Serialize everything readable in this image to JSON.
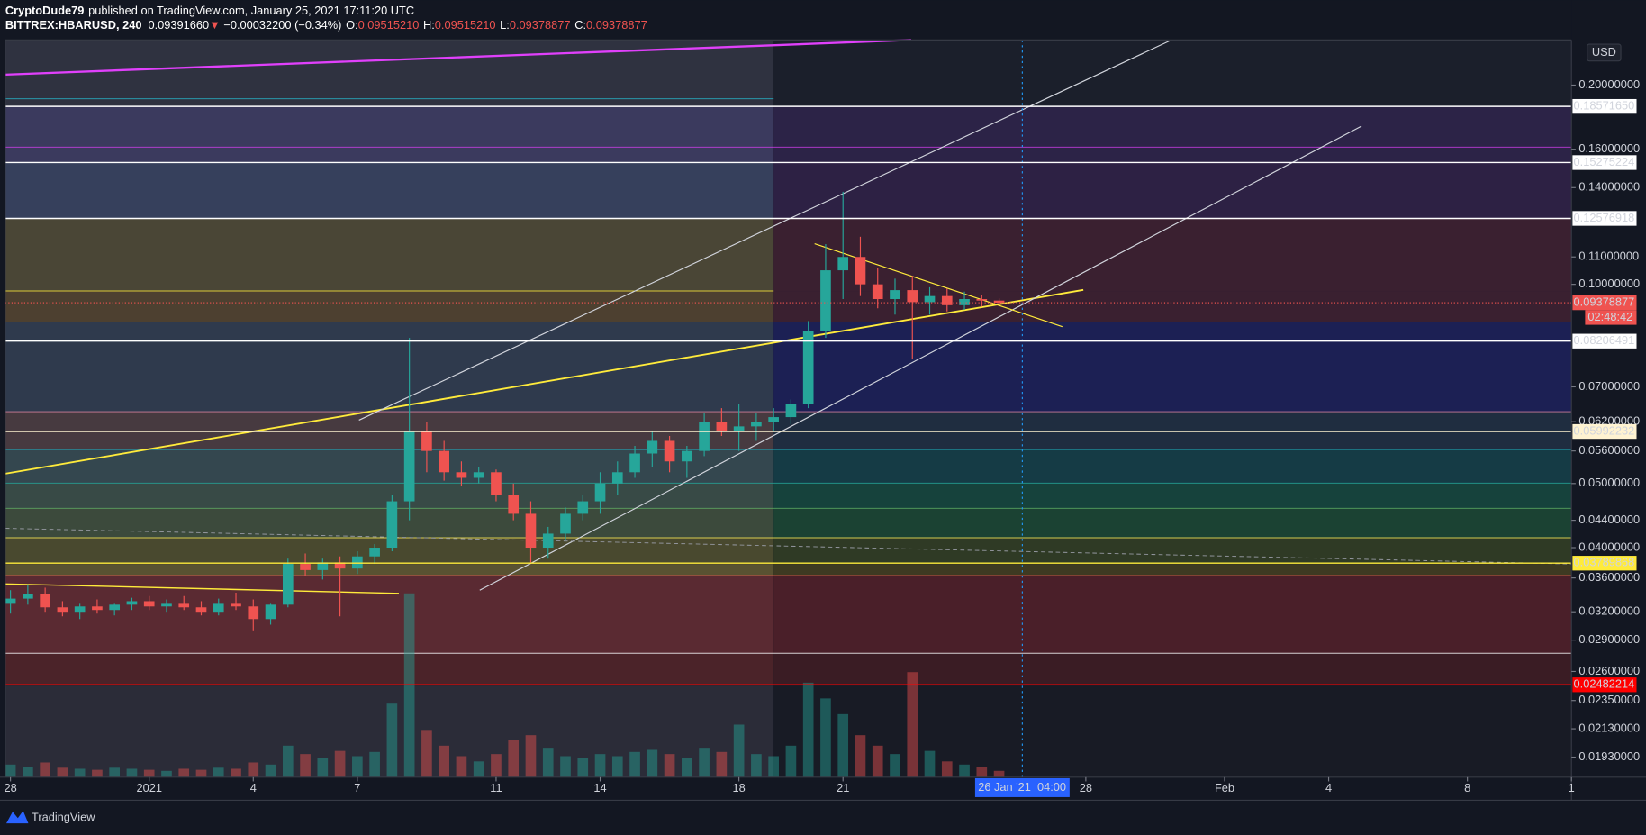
{
  "header": {
    "author": "CryptoDude79",
    "published": "published on TradingView.com, January 25, 2021 17:11:20 UTC"
  },
  "chart_data": {
    "type": "candlestick",
    "symbol": "BITTREX:HBARUSD, 240",
    "last": "0.09391660",
    "change_arrow": "▼",
    "change": "−0.00032200 (−0.34%)",
    "ohlc": [
      {
        "label": "O:",
        "value": "0.09515210"
      },
      {
        "label": "H:",
        "value": "0.09515210"
      },
      {
        "label": "L:",
        "value": "0.09378877"
      },
      {
        "label": "C:",
        "value": "0.09378877"
      }
    ],
    "currency": "USD",
    "x": [
      0,
      0.5,
      1,
      1.5,
      2,
      2.5,
      3,
      3.5,
      4,
      4.5,
      5,
      5.5,
      6,
      6.5,
      7,
      7.5,
      8,
      8.5,
      9,
      9.5,
      10,
      10.5,
      11,
      11.5,
      12,
      12.5,
      13,
      13.5,
      14,
      14.5,
      15,
      15.5,
      16,
      16.5,
      17,
      17.5,
      18,
      18.5,
      19,
      19.5,
      20,
      20.5,
      21,
      21.5,
      22,
      22.5,
      23,
      23.5,
      24,
      24.5,
      25,
      25.5,
      26,
      26.5,
      27,
      27.5,
      28,
      28.5
    ],
    "open": [
      0.033,
      0.0335,
      0.034,
      0.0325,
      0.032,
      0.0326,
      0.0322,
      0.0328,
      0.0332,
      0.0326,
      0.033,
      0.0325,
      0.032,
      0.033,
      0.0326,
      0.0312,
      0.0328,
      0.0378,
      0.037,
      0.038,
      0.0372,
      0.0388,
      0.04,
      0.047,
      0.06,
      0.056,
      0.052,
      0.051,
      0.052,
      0.048,
      0.045,
      0.04,
      0.042,
      0.045,
      0.047,
      0.05,
      0.052,
      0.0555,
      0.058,
      0.054,
      0.056,
      0.062,
      0.06,
      0.061,
      0.062,
      0.063,
      0.066,
      0.085,
      0.105,
      0.11,
      0.1,
      0.095,
      0.098,
      0.094,
      0.096,
      0.093,
      0.095,
      0.0945
    ],
    "high": [
      0.0345,
      0.0352,
      0.0348,
      0.0332,
      0.033,
      0.0334,
      0.033,
      0.0336,
      0.0338,
      0.0334,
      0.0338,
      0.0332,
      0.0335,
      0.0342,
      0.0334,
      0.033,
      0.0385,
      0.0392,
      0.0385,
      0.0388,
      0.0395,
      0.0405,
      0.048,
      0.083,
      0.062,
      0.058,
      0.054,
      0.053,
      0.0525,
      0.05,
      0.047,
      0.043,
      0.046,
      0.048,
      0.052,
      0.054,
      0.057,
      0.06,
      0.059,
      0.057,
      0.064,
      0.065,
      0.066,
      0.064,
      0.065,
      0.067,
      0.088,
      0.115,
      0.138,
      0.118,
      0.106,
      0.102,
      0.103,
      0.099,
      0.0985,
      0.0975,
      0.0965,
      0.0952
    ],
    "low": [
      0.0318,
      0.0328,
      0.032,
      0.0315,
      0.0312,
      0.0318,
      0.0316,
      0.0322,
      0.0322,
      0.032,
      0.0322,
      0.0316,
      0.0316,
      0.0322,
      0.03,
      0.0306,
      0.0325,
      0.0362,
      0.0358,
      0.0315,
      0.0365,
      0.0378,
      0.0395,
      0.044,
      0.052,
      0.0505,
      0.0495,
      0.05,
      0.047,
      0.044,
      0.038,
      0.0385,
      0.041,
      0.044,
      0.045,
      0.048,
      0.051,
      0.053,
      0.052,
      0.051,
      0.055,
      0.059,
      0.056,
      0.058,
      0.06,
      0.0615,
      0.065,
      0.083,
      0.095,
      0.096,
      0.092,
      0.09,
      0.077,
      0.09,
      0.091,
      0.0915,
      0.0925,
      0.093
    ],
    "close": [
      0.0335,
      0.034,
      0.0325,
      0.032,
      0.0326,
      0.0322,
      0.0328,
      0.0332,
      0.0326,
      0.033,
      0.0325,
      0.032,
      0.033,
      0.0326,
      0.0312,
      0.0328,
      0.0378,
      0.037,
      0.038,
      0.0372,
      0.0388,
      0.04,
      0.047,
      0.06,
      0.056,
      0.052,
      0.051,
      0.052,
      0.048,
      0.045,
      0.04,
      0.042,
      0.045,
      0.047,
      0.05,
      0.052,
      0.0555,
      0.058,
      0.054,
      0.056,
      0.062,
      0.06,
      0.061,
      0.062,
      0.063,
      0.066,
      0.085,
      0.105,
      0.11,
      0.1,
      0.095,
      0.098,
      0.094,
      0.096,
      0.093,
      0.095,
      0.0945,
      0.0938
    ],
    "volume": [
      12,
      10,
      14,
      9,
      8,
      7,
      9,
      8,
      7,
      6,
      8,
      7,
      9,
      8,
      14,
      12,
      30,
      22,
      18,
      25,
      20,
      24,
      70,
      175,
      45,
      30,
      20,
      15,
      22,
      35,
      40,
      28,
      20,
      18,
      22,
      20,
      24,
      26,
      22,
      18,
      28,
      24,
      50,
      22,
      20,
      30,
      90,
      75,
      60,
      40,
      30,
      22,
      100,
      25,
      15,
      12,
      10,
      6
    ],
    "up_color": "#26a69a",
    "down_color": "#ef5350",
    "xlim": [
      -0.15,
      45
    ],
    "xticks": [
      {
        "value": 0,
        "label": "28"
      },
      {
        "value": 4,
        "label": "2021"
      },
      {
        "value": 7,
        "label": "4"
      },
      {
        "value": 10,
        "label": "7"
      },
      {
        "value": 14,
        "label": "11"
      },
      {
        "value": 17,
        "label": "14"
      },
      {
        "value": 21,
        "label": "18"
      },
      {
        "value": 24,
        "label": "21"
      },
      {
        "value": 31,
        "label": "28"
      },
      {
        "value": 35,
        "label": "Feb"
      },
      {
        "value": 38,
        "label": "4"
      },
      {
        "value": 42,
        "label": "8"
      },
      {
        "value": 45,
        "label": "1"
      }
    ],
    "ylim": [
      0.018,
      0.234
    ],
    "log_scale": true,
    "yticks": [
      {
        "value": 0.2,
        "label": "0.20000000"
      },
      {
        "value": 0.16,
        "label": "0.16000000"
      },
      {
        "value": 0.14,
        "label": "0.14000000"
      },
      {
        "value": 0.11,
        "label": "0.11000000"
      },
      {
        "value": 0.1,
        "label": "0.10000000"
      },
      {
        "value": 0.07,
        "label": "0.07000000"
      },
      {
        "value": 0.062,
        "label": "0.06200000"
      },
      {
        "value": 0.056,
        "label": "0.05600000"
      },
      {
        "value": 0.05,
        "label": "0.05000000"
      },
      {
        "value": 0.044,
        "label": "0.04400000"
      },
      {
        "value": 0.04,
        "label": "0.04000000"
      },
      {
        "value": 0.036,
        "label": "0.03600000"
      },
      {
        "value": 0.032,
        "label": "0.03200000"
      },
      {
        "value": 0.029,
        "label": "0.02900000"
      },
      {
        "value": 0.026,
        "label": "0.02600000"
      },
      {
        "value": 0.0235,
        "label": "0.02350000"
      },
      {
        "value": 0.0213,
        "label": "0.02130000"
      },
      {
        "value": 0.0193,
        "label": "0.01930000"
      }
    ],
    "levels": [
      {
        "value": 0.1857165,
        "label": "0.18571650",
        "color": "#ffffff",
        "text_color": "#131722"
      },
      {
        "value": 0.15275224,
        "label": "0.15275224",
        "color": "#ffffff",
        "text_color": "#131722"
      },
      {
        "value": 0.12576918,
        "label": "0.12576918",
        "color": "#ffffff",
        "text_color": "#131722"
      },
      {
        "value": 0.09378877,
        "label": "0.09378877",
        "color": "#ef5350",
        "text_color": "#ffffff",
        "dotted": true
      },
      {
        "value": 0.08206491,
        "label": "0.08206491",
        "color": "#ffffff",
        "text_color": "#131722"
      },
      {
        "value": 0.05992232,
        "label": "0.05992232",
        "color": "#fff3d1",
        "text_color": "#131722"
      },
      {
        "value": 0.03789868,
        "label": "0.03789868",
        "color": "#ffeb3b",
        "text_color": "#131722"
      },
      {
        "value": 0.02482214,
        "label": "0.02482214",
        "color": "#ff0000",
        "text_color": "#ffffff"
      }
    ],
    "countdown": "02:48:42",
    "crosshair": {
      "value": 29.17,
      "date": "26 Jan '21",
      "time": "04:00"
    }
  },
  "footer": {
    "brand": "TradingView"
  }
}
